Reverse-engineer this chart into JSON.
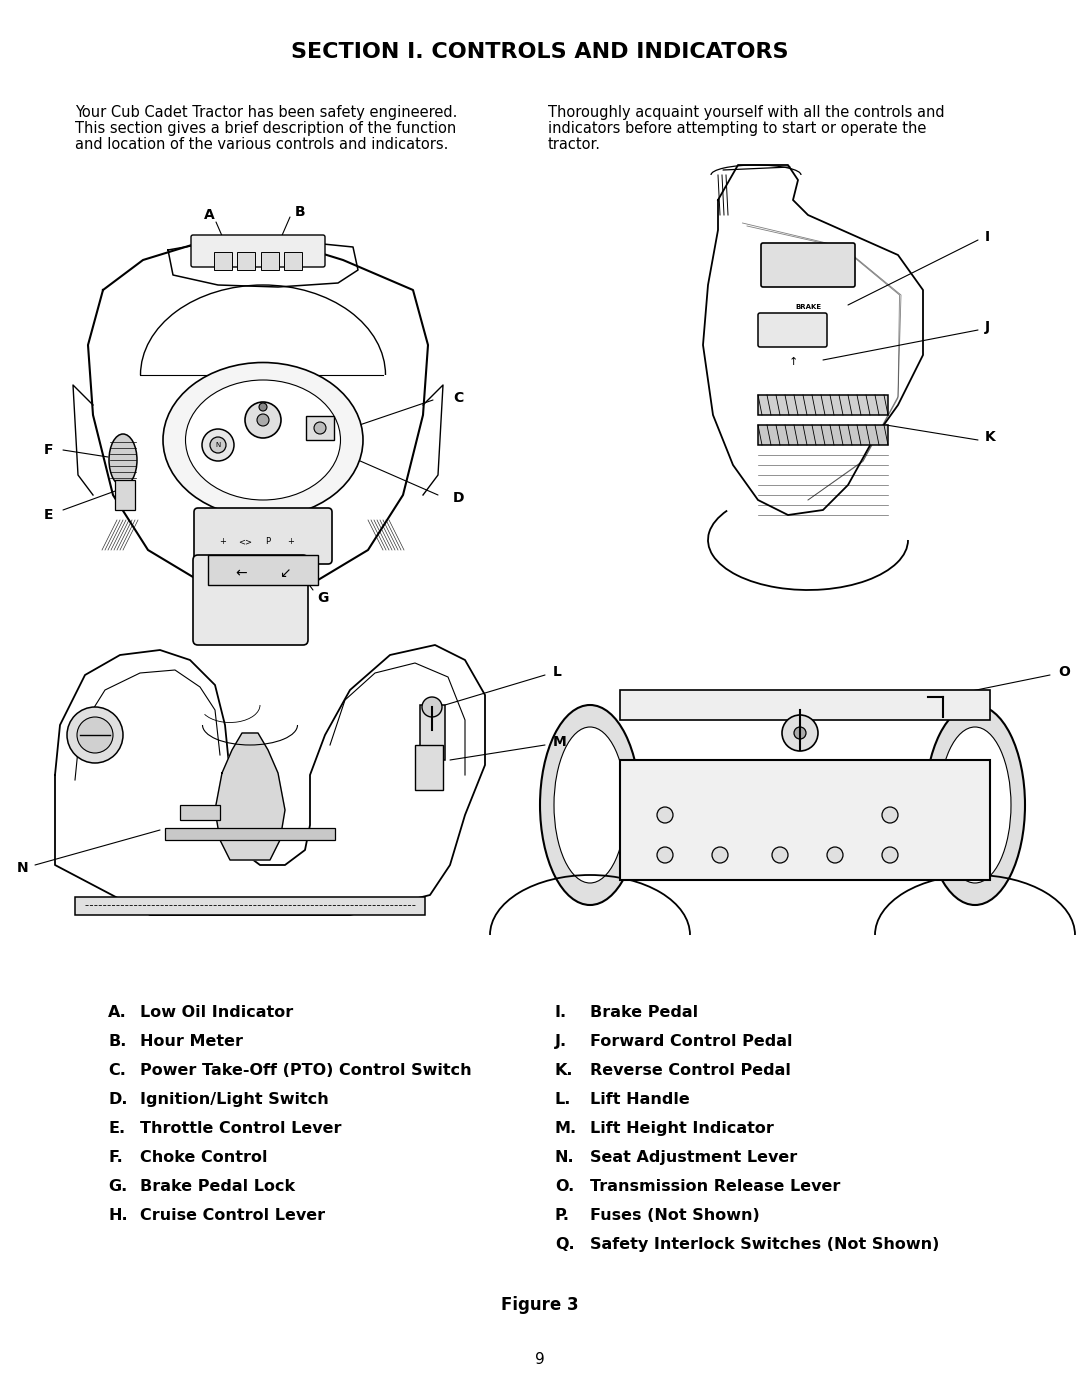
{
  "title": "SECTION I. CONTROLS AND INDICATORS",
  "para_left_lines": [
    "Your Cub Cadet Tractor has been safety engineered.",
    "This section gives a brief description of the function",
    "and location of the various controls and indicators."
  ],
  "para_right_lines": [
    "Thoroughly acquaint yourself with all the controls and",
    "indicators before attempting to start or operate the",
    "tractor."
  ],
  "left_items": [
    [
      "A.",
      "Low Oil Indicator"
    ],
    [
      "B.",
      "Hour Meter"
    ],
    [
      "C.",
      "Power Take-Off (PTO) Control Switch"
    ],
    [
      "D.",
      "Ignition/Light Switch"
    ],
    [
      "E.",
      "Throttle Control Lever"
    ],
    [
      "F.",
      "Choke Control"
    ],
    [
      "G.",
      "Brake Pedal Lock"
    ],
    [
      "H.",
      "Cruise Control Lever"
    ]
  ],
  "right_items": [
    [
      "I.",
      "Brake Pedal"
    ],
    [
      "J.",
      "Forward Control Pedal"
    ],
    [
      "K.",
      "Reverse Control Pedal"
    ],
    [
      "L.",
      "Lift Handle"
    ],
    [
      "M.",
      "Lift Height Indicator"
    ],
    [
      "N.",
      "Seat Adjustment Lever"
    ],
    [
      "O.",
      "Transmission Release Lever"
    ],
    [
      "P.",
      "Fuses (Not Shown)"
    ],
    [
      "Q.",
      "Safety Interlock Switches (Not Shown)"
    ]
  ],
  "figure_caption": "Figure 3",
  "page_number": "9",
  "bg_color": "#ffffff",
  "text_color": "#000000",
  "title_fontsize": 16,
  "body_fontsize": 10.5,
  "list_fontsize": 11.5
}
